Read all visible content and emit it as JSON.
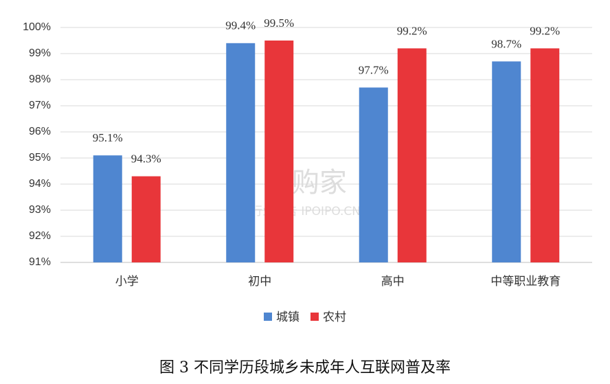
{
  "chart_data": {
    "type": "bar",
    "title": "图 3 不同学历段城乡未成年人互联网普及率",
    "watermark": [
      "并购家",
      "行业报告 IPOIPO.CN"
    ],
    "categories": [
      "小学",
      "初中",
      "高中",
      "中等职业教育"
    ],
    "series": [
      {
        "name": "城镇",
        "color": "#4f86d0",
        "values": [
          95.1,
          99.4,
          97.7,
          98.7
        ],
        "value_labels": [
          "95.1%",
          "99.4%",
          "97.7%",
          "98.7%"
        ]
      },
      {
        "name": "农村",
        "color": "#e8363a",
        "values": [
          94.3,
          99.5,
          99.2,
          99.2
        ],
        "value_labels": [
          "94.3%",
          "99.5%",
          "99.2%",
          "99.2%"
        ]
      }
    ],
    "ylim": [
      91,
      100
    ],
    "yticks": [
      {
        "value": 91,
        "label": "91%"
      },
      {
        "value": 92,
        "label": "92%"
      },
      {
        "value": 93,
        "label": "93%"
      },
      {
        "value": 94,
        "label": "94%"
      },
      {
        "value": 95,
        "label": "95%"
      },
      {
        "value": 96,
        "label": "96%"
      },
      {
        "value": 97,
        "label": "97%"
      },
      {
        "value": 98,
        "label": "98%"
      },
      {
        "value": 99,
        "label": "99%"
      },
      {
        "value": 100,
        "label": "100%"
      }
    ],
    "grid": true,
    "legend": "bottom"
  }
}
